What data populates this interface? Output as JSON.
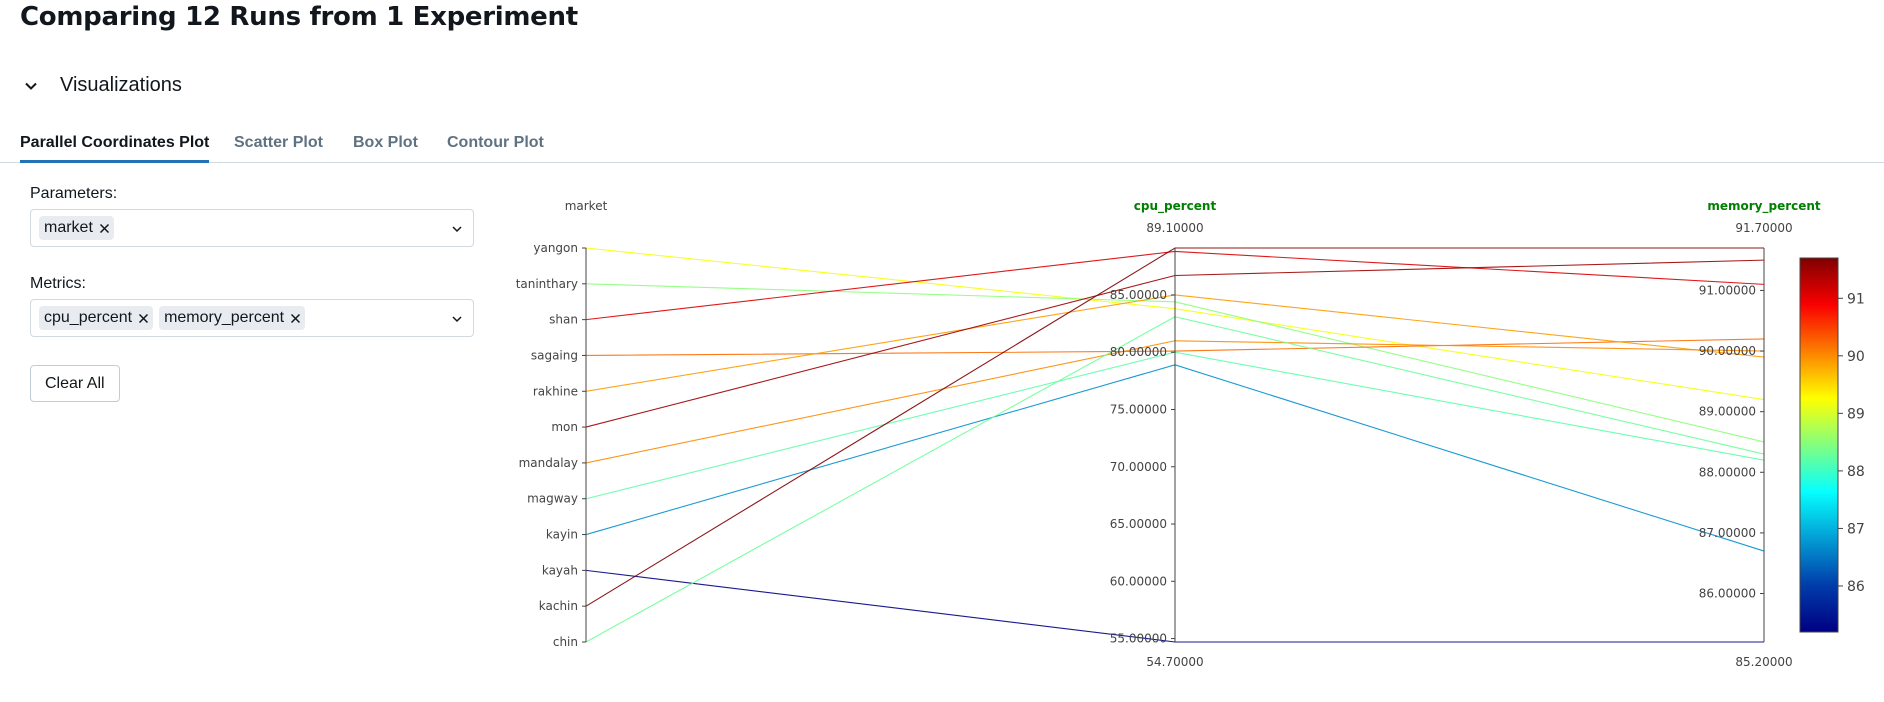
{
  "page": {
    "title": "Comparing 12 Runs from 1 Experiment"
  },
  "section": {
    "label": "Visualizations"
  },
  "tabs": [
    {
      "label": "Parallel Coordinates Plot",
      "active": true
    },
    {
      "label": "Scatter Plot",
      "active": false
    },
    {
      "label": "Box Plot",
      "active": false
    },
    {
      "label": "Contour Plot",
      "active": false
    }
  ],
  "controls": {
    "parameters_label": "Parameters:",
    "parameters": [
      "market"
    ],
    "metrics_label": "Metrics:",
    "metrics": [
      "cpu_percent",
      "memory_percent"
    ],
    "clear_all": "Clear All"
  },
  "colors": {
    "accent": "#2272b4",
    "metric_axis_label": "#008000"
  },
  "chart_data": {
    "type": "parallel_coordinates",
    "axes": [
      {
        "name": "market",
        "kind": "categorical",
        "categories": [
          "chin",
          "kachin",
          "kayah",
          "kayin",
          "magway",
          "mandalay",
          "mon",
          "rakhine",
          "sagaing",
          "shan",
          "taninthary",
          "yangon"
        ]
      },
      {
        "name": "cpu_percent",
        "kind": "numeric",
        "range": [
          54.7,
          89.1
        ],
        "range_labels": [
          "54.70000",
          "89.10000"
        ],
        "ticks": [
          55,
          60,
          65,
          70,
          75,
          80,
          85
        ],
        "tick_labels": [
          "55.00000",
          "60.00000",
          "65.00000",
          "70.00000",
          "75.00000",
          "80.00000",
          "85.00000"
        ]
      },
      {
        "name": "memory_percent",
        "kind": "numeric",
        "range": [
          85.2,
          91.7
        ],
        "range_labels": [
          "85.20000",
          "91.70000"
        ],
        "ticks": [
          86,
          87,
          88,
          89,
          90,
          91
        ],
        "tick_labels": [
          "86.00000",
          "87.00000",
          "88.00000",
          "89.00000",
          "90.00000",
          "91.00000"
        ]
      }
    ],
    "colorscale": {
      "metric": "memory_percent",
      "range": [
        85.2,
        91.7
      ],
      "ticks": [
        86,
        87,
        88,
        89,
        90,
        91
      ],
      "tick_labels": [
        "86",
        "87",
        "88",
        "89",
        "90",
        "91"
      ]
    },
    "runs": [
      {
        "market": "yangon",
        "cpu_percent": 83.8,
        "memory_percent": 89.2
      },
      {
        "market": "taninthary",
        "cpu_percent": 84.4,
        "memory_percent": 88.5
      },
      {
        "market": "shan",
        "cpu_percent": 88.8,
        "memory_percent": 91.1
      },
      {
        "market": "sagaing",
        "cpu_percent": 80.1,
        "memory_percent": 90.2
      },
      {
        "market": "rakhine",
        "cpu_percent": 85.0,
        "memory_percent": 89.9
      },
      {
        "market": "mon",
        "cpu_percent": 86.7,
        "memory_percent": 91.5
      },
      {
        "market": "mandalay",
        "cpu_percent": 81.0,
        "memory_percent": 90.0
      },
      {
        "market": "magway",
        "cpu_percent": 80.0,
        "memory_percent": 88.2
      },
      {
        "market": "kayin",
        "cpu_percent": 78.9,
        "memory_percent": 86.7
      },
      {
        "market": "kayah",
        "cpu_percent": 54.7,
        "memory_percent": 85.2
      },
      {
        "market": "kachin",
        "cpu_percent": 89.1,
        "memory_percent": 91.7
      },
      {
        "market": "chin",
        "cpu_percent": 83.1,
        "memory_percent": 88.3
      }
    ]
  }
}
